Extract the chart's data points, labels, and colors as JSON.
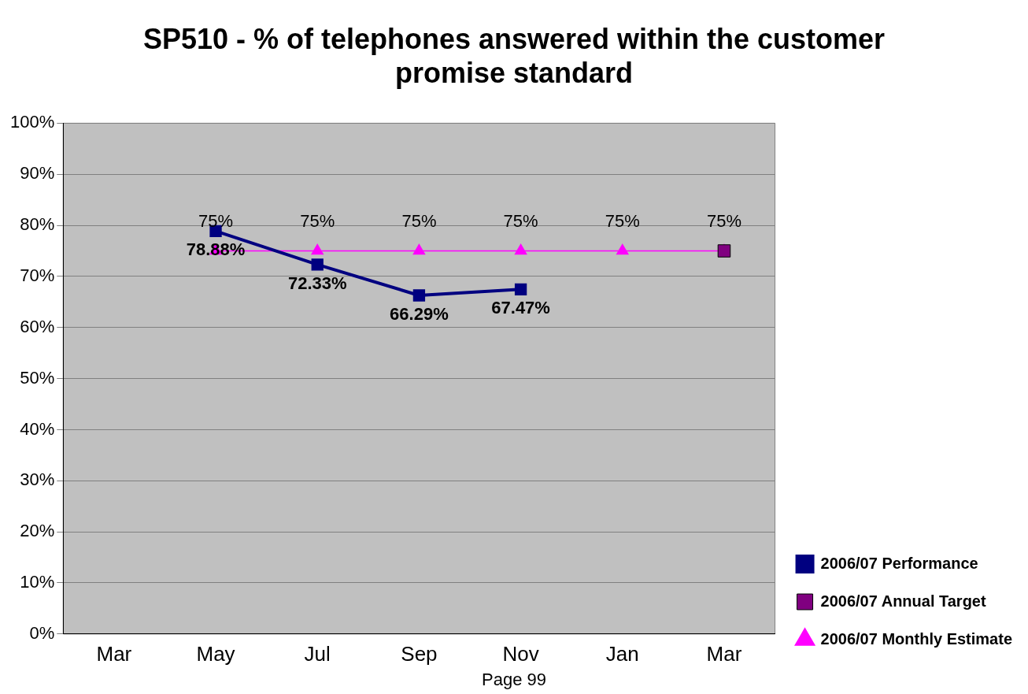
{
  "chart_data": {
    "type": "line",
    "title": "SP510 - % of telephones answered within the customer promise standard",
    "categories": [
      "Mar",
      "May",
      "Jul",
      "Sep",
      "Nov",
      "Jan",
      "Mar"
    ],
    "series": [
      {
        "name": "2006/07 Performance",
        "color": "#000080",
        "marker": "square",
        "values": [
          null,
          78.88,
          72.33,
          66.29,
          67.47,
          null,
          null
        ],
        "value_labels": [
          null,
          "78.88%",
          "72.33%",
          "66.29%",
          "67.47%",
          null,
          null
        ]
      },
      {
        "name": "2006/07 Annual Target",
        "type": "scatter",
        "color": "#800080",
        "marker": "square",
        "values": [
          null,
          null,
          null,
          null,
          null,
          null,
          75
        ]
      },
      {
        "name": "2006/07 Monthly Estimate",
        "color": "#ff00ff",
        "marker": "triangle",
        "values": [
          null,
          75,
          75,
          75,
          75,
          75,
          75
        ],
        "value_labels": [
          null,
          "75%",
          "75%",
          "75%",
          "75%",
          "75%",
          "75%"
        ]
      }
    ],
    "ylim": [
      0,
      100
    ],
    "yticks": [
      {
        "value": 0,
        "label": "0%"
      },
      {
        "value": 10,
        "label": "10%"
      },
      {
        "value": 20,
        "label": "20%"
      },
      {
        "value": 30,
        "label": "30%"
      },
      {
        "value": 40,
        "label": "40%"
      },
      {
        "value": 50,
        "label": "50%"
      },
      {
        "value": 60,
        "label": "60%"
      },
      {
        "value": 70,
        "label": "70%"
      },
      {
        "value": 80,
        "label": "80%"
      },
      {
        "value": 90,
        "label": "90%"
      },
      {
        "value": 100,
        "label": "100%"
      }
    ],
    "grid": "y",
    "legend": "bottom right",
    "annotations": [
      "Page 99"
    ]
  }
}
